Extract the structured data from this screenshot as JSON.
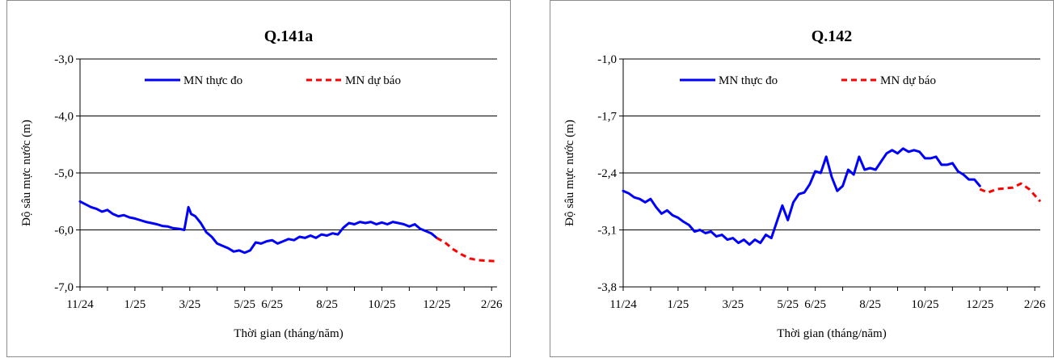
{
  "chart_data": [
    {
      "type": "line",
      "title": "Q.141a",
      "xlabel": "Thời gian (tháng/năm)",
      "ylabel": "Độ sâu mực nước (m)",
      "ylim": [
        -7.0,
        -3.0
      ],
      "yticks": [
        "-3,0",
        "-4,0",
        "-5,0",
        "-6,0",
        "-7,0"
      ],
      "ytick_values": [
        -3.0,
        -4.0,
        -5.0,
        -6.0,
        -7.0
      ],
      "categories": [
        "11/24",
        "1/25",
        "3/25",
        "5/25",
        "6/25",
        "8/25",
        "10/25",
        "12/25",
        "2/26"
      ],
      "x_month_index": [
        0,
        2,
        4,
        6,
        7,
        9,
        11,
        13,
        15
      ],
      "x_range": [
        0,
        15.2
      ],
      "grid": true,
      "legend_position": "top",
      "series": [
        {
          "name": "MN thực đo",
          "color": "#0000FF",
          "dash": "solid",
          "x": [
            0,
            0.2,
            0.4,
            0.6,
            0.8,
            1.0,
            1.2,
            1.4,
            1.6,
            1.8,
            2.0,
            2.2,
            2.4,
            2.6,
            2.8,
            3.0,
            3.2,
            3.4,
            3.6,
            3.8,
            3.95,
            4.05,
            4.2,
            4.4,
            4.6,
            4.8,
            5.0,
            5.2,
            5.4,
            5.6,
            5.8,
            6.0,
            6.2,
            6.4,
            6.6,
            6.8,
            7.0,
            7.2,
            7.4,
            7.6,
            7.8,
            8.0,
            8.2,
            8.4,
            8.6,
            8.8,
            9.0,
            9.2,
            9.4,
            9.6,
            9.8,
            10.0,
            10.2,
            10.4,
            10.6,
            10.8,
            11.0,
            11.2,
            11.4,
            11.6,
            11.8,
            12.0,
            12.2,
            12.4,
            12.6,
            12.8,
            13.0
          ],
          "y": [
            -5.5,
            -5.55,
            -5.6,
            -5.63,
            -5.68,
            -5.65,
            -5.72,
            -5.76,
            -5.74,
            -5.78,
            -5.8,
            -5.83,
            -5.86,
            -5.88,
            -5.9,
            -5.93,
            -5.94,
            -5.97,
            -5.98,
            -6.0,
            -5.6,
            -5.72,
            -5.76,
            -5.88,
            -6.04,
            -6.12,
            -6.24,
            -6.28,
            -6.32,
            -6.38,
            -6.36,
            -6.4,
            -6.36,
            -6.22,
            -6.24,
            -6.2,
            -6.18,
            -6.24,
            -6.2,
            -6.16,
            -6.18,
            -6.12,
            -6.14,
            -6.1,
            -6.14,
            -6.08,
            -6.1,
            -6.06,
            -6.08,
            -5.96,
            -5.88,
            -5.9,
            -5.86,
            -5.88,
            -5.86,
            -5.9,
            -5.87,
            -5.9,
            -5.86,
            -5.88,
            -5.9,
            -5.94,
            -5.9,
            -5.98,
            -6.02,
            -6.06,
            -6.14
          ]
        },
        {
          "name": "MN dự báo",
          "color": "#FF0000",
          "dash": "dashed",
          "x": [
            13.0,
            13.3,
            13.6,
            13.9,
            14.2,
            14.5,
            14.8,
            15.2
          ],
          "y": [
            -6.14,
            -6.22,
            -6.34,
            -6.43,
            -6.5,
            -6.53,
            -6.54,
            -6.55
          ]
        }
      ]
    },
    {
      "type": "line",
      "title": "Q.142",
      "xlabel": "Thời gian (tháng/năm)",
      "ylabel": "Độ sâu mực nước (m)",
      "ylim": [
        -3.8,
        -1.0
      ],
      "yticks": [
        "-1,0",
        "-1,7",
        "-2,4",
        "-3,1",
        "-3,8"
      ],
      "ytick_values": [
        -1.0,
        -1.7,
        -2.4,
        -3.1,
        -3.8
      ],
      "categories": [
        "11/24",
        "1/25",
        "3/25",
        "5/25",
        "6/25",
        "8/25",
        "10/25",
        "12/25",
        "2/26"
      ],
      "x_month_index": [
        0,
        2,
        4,
        6,
        7,
        9,
        11,
        13,
        15
      ],
      "x_range": [
        0,
        15.2
      ],
      "grid": true,
      "legend_position": "top",
      "series": [
        {
          "name": "MN thực đo",
          "color": "#0000FF",
          "dash": "solid",
          "x": [
            0,
            0.2,
            0.4,
            0.6,
            0.8,
            1.0,
            1.2,
            1.4,
            1.6,
            1.8,
            2.0,
            2.2,
            2.4,
            2.6,
            2.8,
            3.0,
            3.2,
            3.4,
            3.6,
            3.8,
            4.0,
            4.2,
            4.4,
            4.6,
            4.8,
            5.0,
            5.2,
            5.4,
            5.6,
            5.8,
            6.0,
            6.2,
            6.4,
            6.6,
            6.8,
            7.0,
            7.2,
            7.4,
            7.6,
            7.8,
            8.0,
            8.2,
            8.4,
            8.6,
            8.8,
            9.0,
            9.2,
            9.4,
            9.6,
            9.8,
            10.0,
            10.2,
            10.4,
            10.6,
            10.8,
            11.0,
            11.2,
            11.4,
            11.6,
            11.8,
            12.0,
            12.2,
            12.4,
            12.6,
            12.8,
            13.0
          ],
          "y": [
            -2.62,
            -2.65,
            -2.7,
            -2.72,
            -2.76,
            -2.72,
            -2.82,
            -2.9,
            -2.86,
            -2.92,
            -2.95,
            -3.0,
            -3.04,
            -3.12,
            -3.1,
            -3.14,
            -3.12,
            -3.18,
            -3.16,
            -3.22,
            -3.2,
            -3.26,
            -3.22,
            -3.28,
            -3.22,
            -3.26,
            -3.16,
            -3.2,
            -3.0,
            -2.8,
            -2.98,
            -2.76,
            -2.66,
            -2.64,
            -2.54,
            -2.38,
            -2.4,
            -2.2,
            -2.45,
            -2.62,
            -2.56,
            -2.36,
            -2.42,
            -2.2,
            -2.36,
            -2.34,
            -2.36,
            -2.26,
            -2.16,
            -2.12,
            -2.16,
            -2.1,
            -2.14,
            -2.12,
            -2.14,
            -2.22,
            -2.22,
            -2.2,
            -2.3,
            -2.3,
            -2.28,
            -2.38,
            -2.42,
            -2.48,
            -2.48,
            -2.56
          ],
          "x_extra": [
            12.8,
            13.0
          ],
          "y_extra": [
            -2.5,
            -2.6
          ]
        },
        {
          "name": "MN dự báo",
          "color": "#FF0000",
          "dash": "dashed",
          "x": [
            13.0,
            13.3,
            13.6,
            13.9,
            14.2,
            14.5,
            14.8,
            15.2
          ],
          "y": [
            -2.6,
            -2.64,
            -2.6,
            -2.59,
            -2.58,
            -2.53,
            -2.6,
            -2.75
          ]
        }
      ]
    }
  ]
}
